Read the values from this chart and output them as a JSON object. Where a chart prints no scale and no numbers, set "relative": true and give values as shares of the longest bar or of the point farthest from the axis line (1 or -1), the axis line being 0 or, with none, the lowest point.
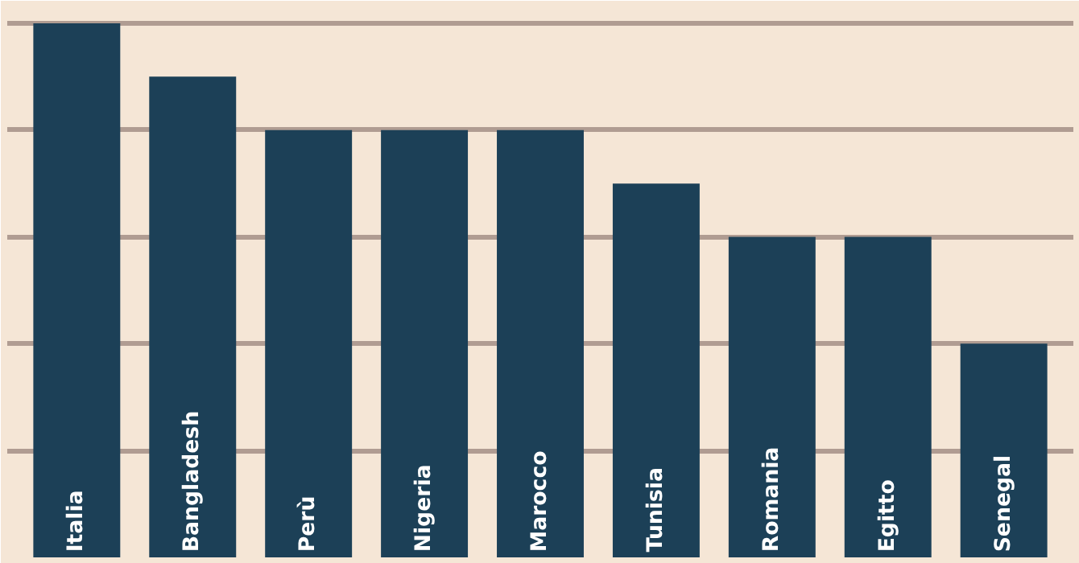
{
  "chart_data": {
    "type": "bar",
    "relative": true,
    "categories": [
      "Italia",
      "Bangladesh",
      "Perù",
      "Nigeria",
      "Marocco",
      "Tunisia",
      "Romania",
      "Egitto",
      "Senegal"
    ],
    "values": [
      1,
      0.9,
      0.8,
      0.8,
      0.8,
      0.7,
      0.6,
      0.6,
      0.4
    ],
    "color": "#1c4057",
    "grid": "y"
  }
}
